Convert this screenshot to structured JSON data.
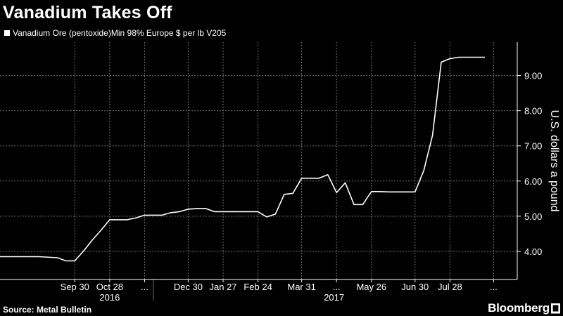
{
  "header": {
    "title": "Vanadium Takes Off"
  },
  "legend": {
    "label": "Vanadium Ore (pentoxide)Min 98% Europe $ per lb V205"
  },
  "footer": {
    "source": "Source: Metal Bulletin",
    "brand": "Bloomberg"
  },
  "colors": {
    "background": "#000000",
    "line": "#ffffff",
    "grid": "#6e6e6e"
  },
  "chart_data": {
    "type": "line",
    "title": "Vanadium Takes Off",
    "ylabel": "U.S. dollars a pound",
    "xlabel": "",
    "ylim": [
      3.2,
      9.95
    ],
    "xlim": [
      "2016-08-01",
      "2017-09-20"
    ],
    "yticks": [
      4.0,
      5.0,
      6.0,
      7.0,
      8.0,
      9.0
    ],
    "ytick_labels": [
      "4.00",
      "5.00",
      "6.00",
      "7.00",
      "8.00",
      "9.00"
    ],
    "xticks": [
      {
        "label": "Sep 30",
        "date": "2016-09-30"
      },
      {
        "label": "Oct 28",
        "date": "2016-10-28"
      },
      {
        "label": "...",
        "date": "2016-11-25"
      },
      {
        "label": "Dec 30",
        "date": "2016-12-30"
      },
      {
        "label": "Jan 27",
        "date": "2017-01-27"
      },
      {
        "label": "Feb 24",
        "date": "2017-02-24"
      },
      {
        "label": "Mar 31",
        "date": "2017-03-31"
      },
      {
        "label": "...",
        "date": "2017-04-28"
      },
      {
        "label": "May 26",
        "date": "2017-05-26"
      },
      {
        "label": "Jun 30",
        "date": "2017-06-30"
      },
      {
        "label": "Jul 28",
        "date": "2017-07-28"
      },
      {
        "label": "...",
        "date": "2017-09-01"
      }
    ],
    "year_labels": [
      {
        "label": "2016",
        "date": "2016-10-28"
      },
      {
        "label": "2017",
        "date": "2017-04-26"
      }
    ],
    "year_divider_date": "2016-12-02",
    "gridlines": true,
    "series": [
      {
        "name": "Vanadium Ore (pentoxide)Min 98% Europe $ per lb V205",
        "x": [
          "2016-08-01",
          "2016-08-15",
          "2016-09-01",
          "2016-09-16",
          "2016-09-23",
          "2016-09-30",
          "2016-10-08",
          "2016-10-14",
          "2016-10-21",
          "2016-10-28",
          "2016-11-04",
          "2016-11-11",
          "2016-11-18",
          "2016-11-25",
          "2016-12-02",
          "2016-12-09",
          "2016-12-16",
          "2016-12-23",
          "2016-12-30",
          "2017-01-06",
          "2017-01-13",
          "2017-01-20",
          "2017-01-27",
          "2017-02-03",
          "2017-02-10",
          "2017-02-17",
          "2017-02-24",
          "2017-03-03",
          "2017-03-10",
          "2017-03-17",
          "2017-03-24",
          "2017-03-31",
          "2017-04-07",
          "2017-04-14",
          "2017-04-21",
          "2017-04-28",
          "2017-05-05",
          "2017-05-12",
          "2017-05-19",
          "2017-05-26",
          "2017-06-02",
          "2017-06-09",
          "2017-06-16",
          "2017-06-23",
          "2017-06-30",
          "2017-07-07",
          "2017-07-14",
          "2017-07-21",
          "2017-07-28",
          "2017-08-04",
          "2017-08-11",
          "2017-08-18",
          "2017-08-25"
        ],
        "values": [
          3.85,
          3.85,
          3.85,
          3.82,
          3.73,
          3.73,
          4.05,
          4.32,
          4.6,
          4.9,
          4.9,
          4.9,
          4.95,
          5.03,
          5.03,
          5.03,
          5.1,
          5.13,
          5.2,
          5.22,
          5.22,
          5.13,
          5.13,
          5.13,
          5.13,
          5.13,
          5.13,
          4.98,
          5.06,
          5.62,
          5.65,
          6.08,
          6.08,
          6.08,
          6.18,
          5.67,
          5.95,
          5.33,
          5.33,
          5.7,
          5.7,
          5.69,
          5.69,
          5.69,
          5.69,
          6.3,
          7.3,
          9.38,
          9.48,
          9.52,
          9.52,
          9.52,
          9.52
        ]
      }
    ]
  }
}
